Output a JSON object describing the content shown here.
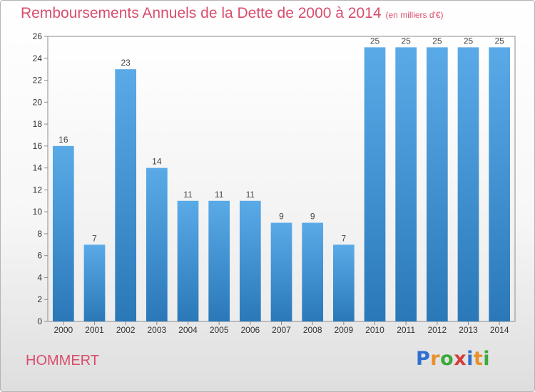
{
  "header": {
    "title": "Remboursements Annuels de la Dette de 2000 à 2014",
    "subtitle": "(en milliers d'€)"
  },
  "footer": {
    "commune": "HOMMERT",
    "logo_letters": [
      "P",
      "r",
      "o",
      "x",
      "i",
      "t",
      "i"
    ],
    "logo_colors": [
      "#2f6fd0",
      "#e8902c",
      "#3aaa3a",
      "#d43c3c",
      "#2f6fd0",
      "#e8902c",
      "#3aaa3a"
    ]
  },
  "chart_data": {
    "type": "bar",
    "title": "Remboursements Annuels de la Dette de 2000 à 2014",
    "subtitle": "(en milliers d'€)",
    "categories": [
      "2000",
      "2001",
      "2002",
      "2003",
      "2004",
      "2005",
      "2006",
      "2007",
      "2008",
      "2009",
      "2010",
      "2011",
      "2012",
      "2013",
      "2014"
    ],
    "values": [
      16,
      7,
      23,
      14,
      11,
      11,
      11,
      9,
      9,
      7,
      25,
      25,
      25,
      25,
      25
    ],
    "ylim": [
      0,
      26
    ],
    "yticks": [
      0,
      2,
      4,
      6,
      8,
      10,
      12,
      14,
      16,
      18,
      20,
      22,
      24,
      26
    ],
    "grid": false,
    "bar_color_top": "#5aaae8",
    "bar_color_bottom": "#2a78b8"
  }
}
